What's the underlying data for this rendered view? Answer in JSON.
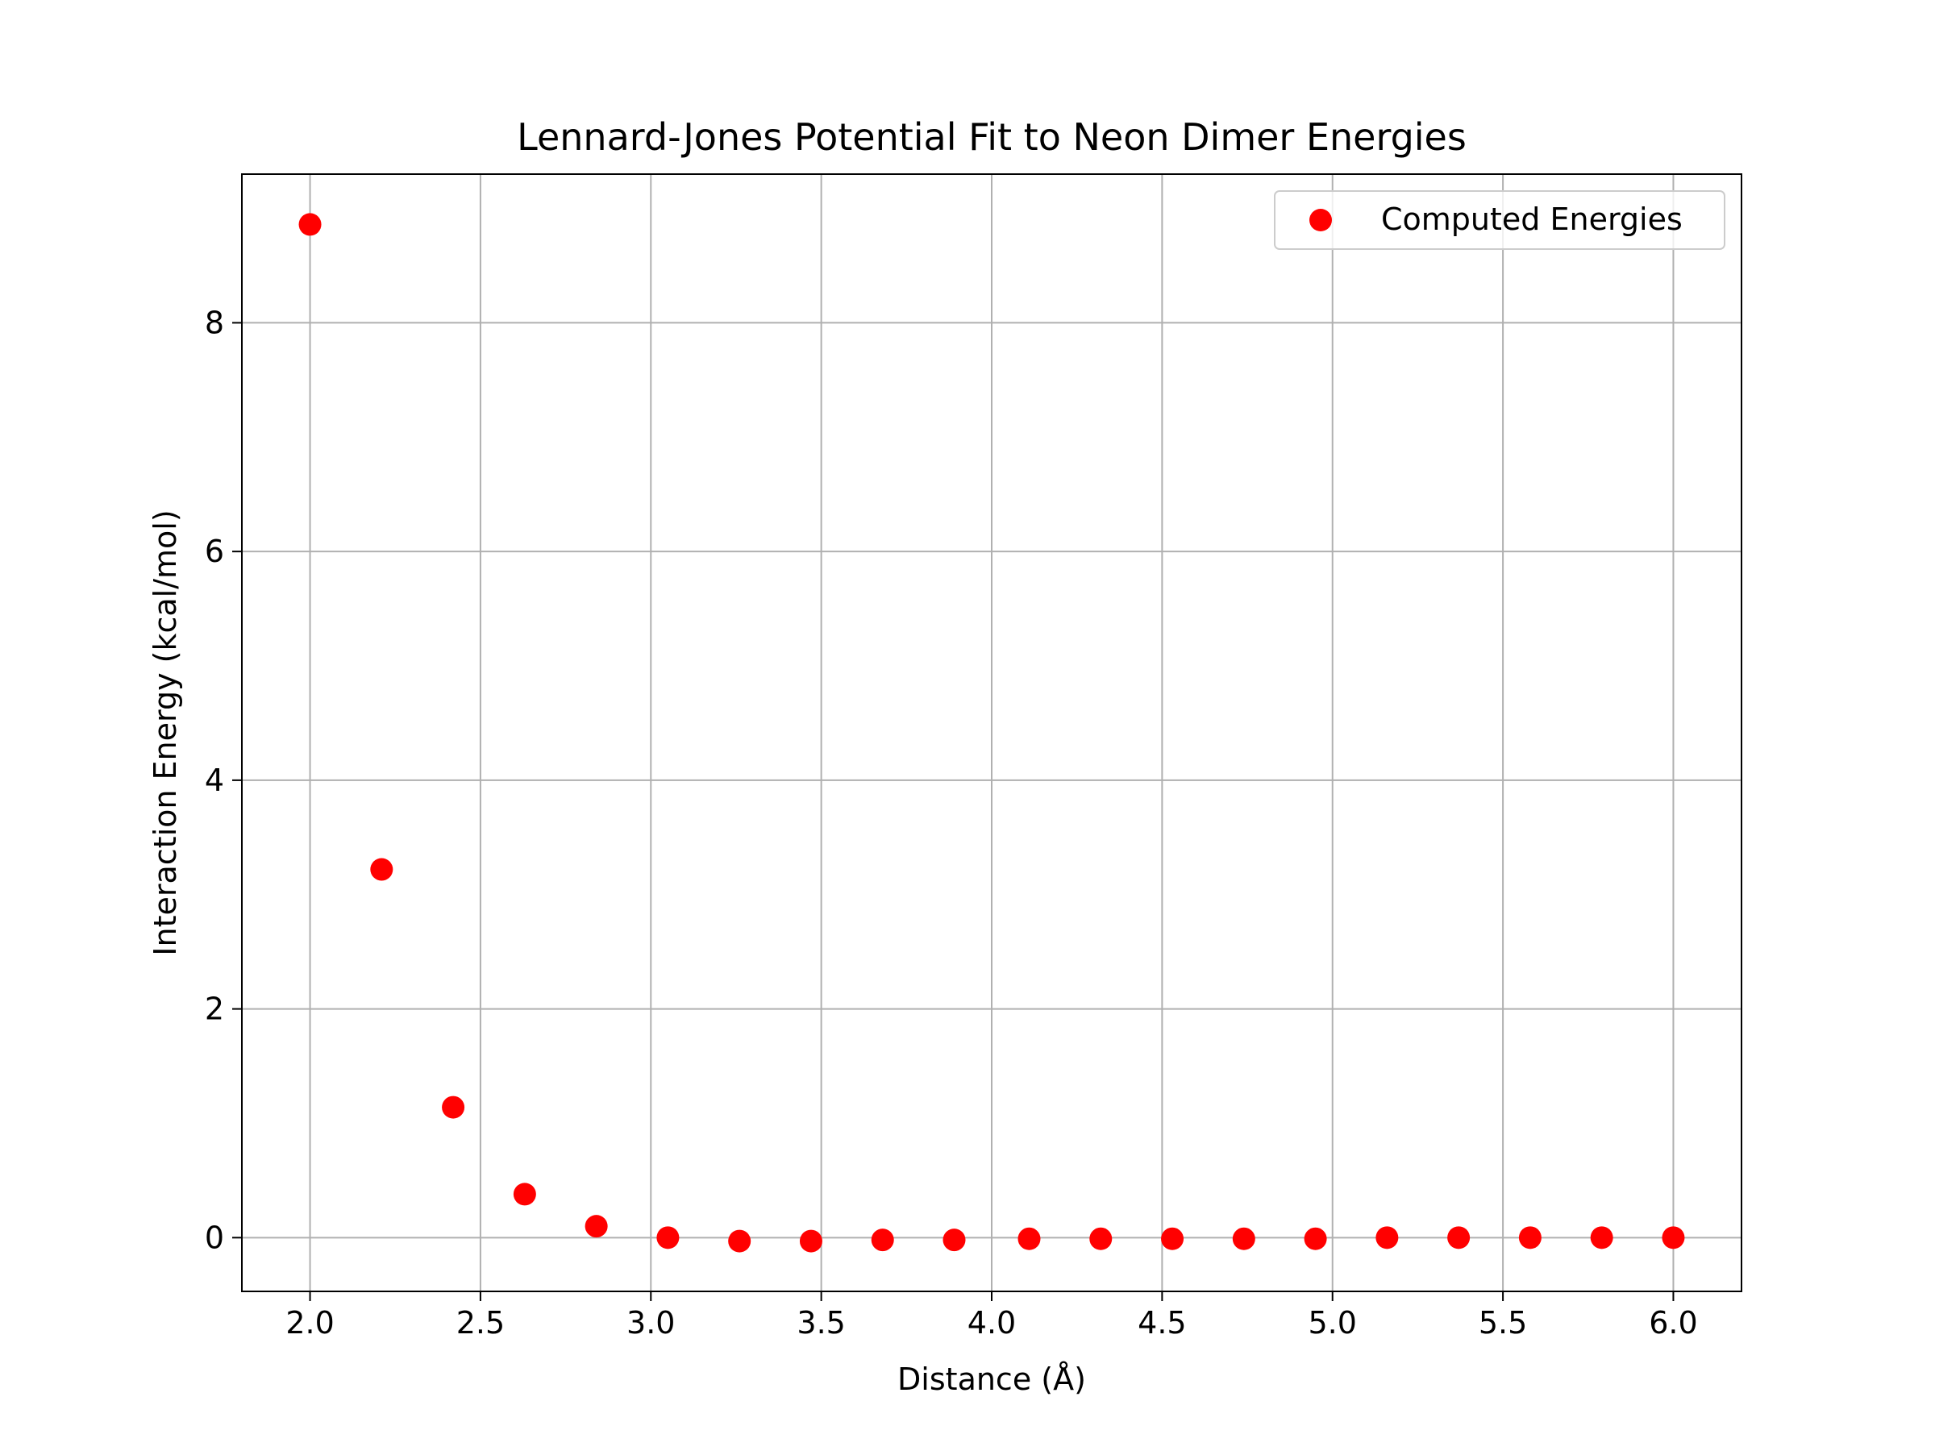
{
  "chart_data": {
    "type": "scatter",
    "title": "Lennard-Jones Potential Fit to Neon Dimer Energies",
    "xlabel": "Distance (Å)",
    "ylabel": "Interaction Energy (kcal/mol)",
    "xlim": [
      1.8,
      6.2
    ],
    "ylim": [
      -0.47,
      9.3
    ],
    "xticks": [
      "2.0",
      "2.5",
      "3.0",
      "3.5",
      "4.0",
      "4.5",
      "5.0",
      "5.5",
      "6.0"
    ],
    "yticks": [
      "0",
      "2",
      "4",
      "6",
      "8"
    ],
    "grid": true,
    "legend_position": "top-right",
    "series": [
      {
        "name": "Computed Energies",
        "color": "#ff0000",
        "marker": "circle",
        "x": [
          2.0,
          2.21,
          2.42,
          2.63,
          2.84,
          3.05,
          3.26,
          3.47,
          3.68,
          3.89,
          4.11,
          4.32,
          4.53,
          4.74,
          4.95,
          5.16,
          5.37,
          5.58,
          5.79,
          6.0
        ],
        "y": [
          8.86,
          3.22,
          1.14,
          0.38,
          0.1,
          0.0,
          -0.03,
          -0.03,
          -0.02,
          -0.02,
          -0.01,
          -0.01,
          -0.01,
          -0.01,
          -0.01,
          0.0,
          0.0,
          0.0,
          0.0,
          0.0
        ]
      }
    ]
  }
}
